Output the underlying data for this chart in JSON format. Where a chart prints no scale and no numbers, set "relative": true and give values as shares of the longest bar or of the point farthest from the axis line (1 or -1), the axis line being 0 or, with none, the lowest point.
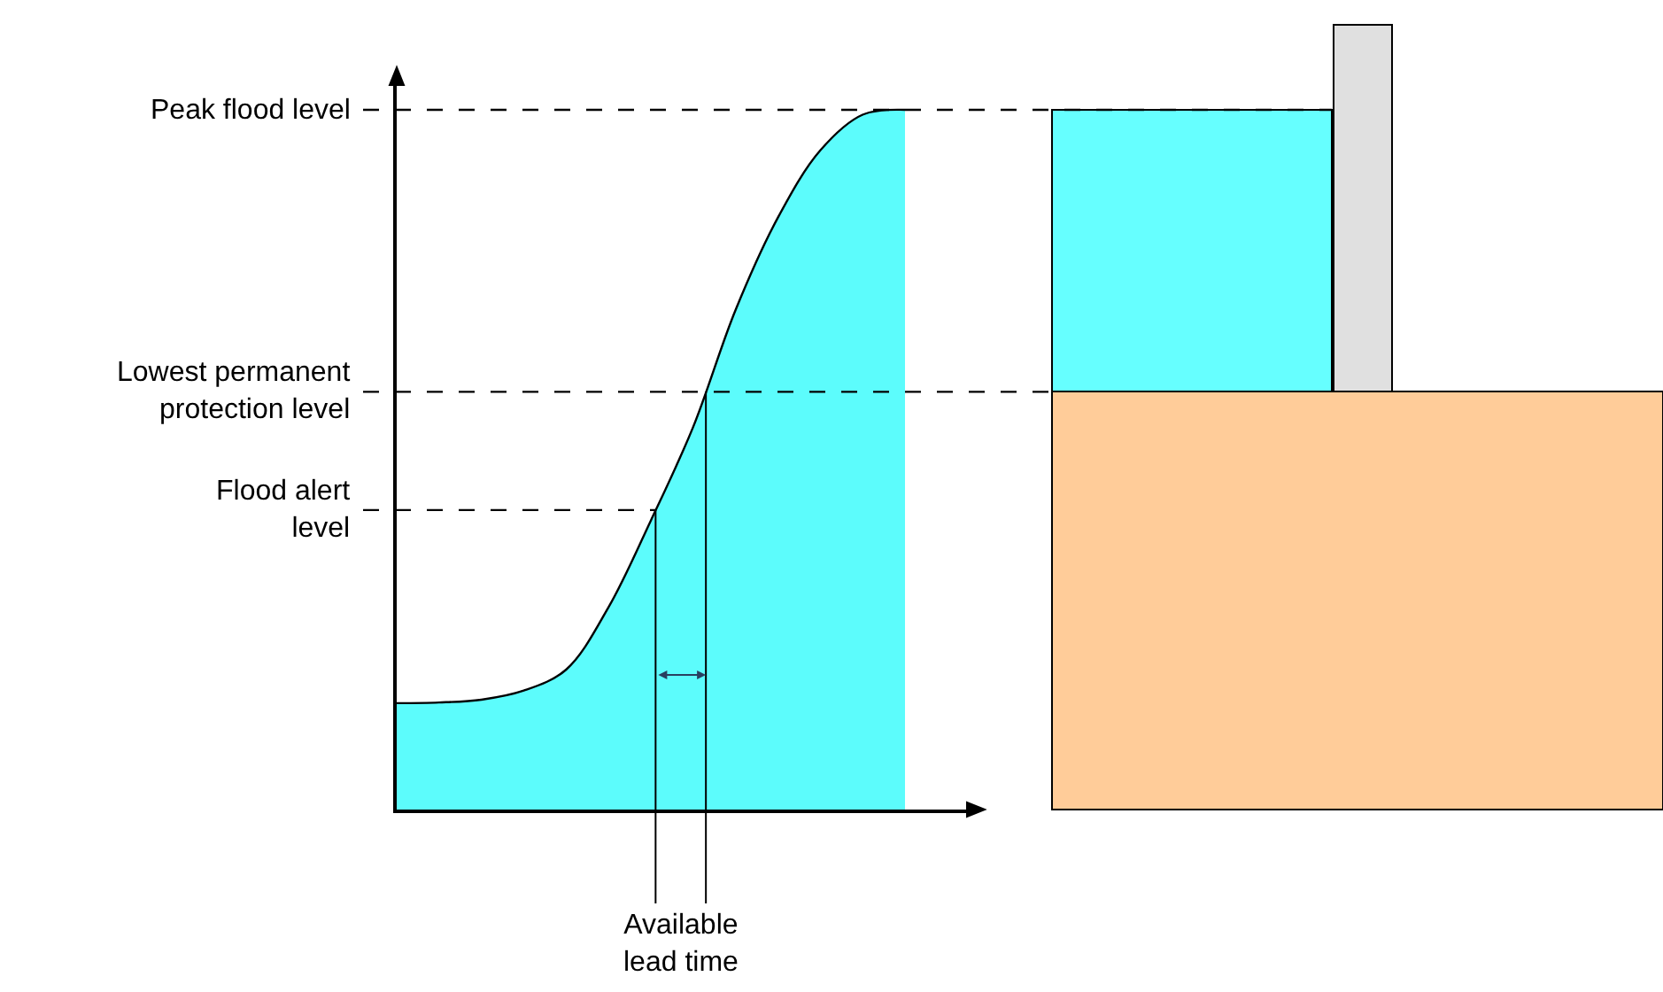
{
  "chart_data": {
    "type": "area",
    "relative": true,
    "categories": [
      null,
      null,
      null,
      null,
      null,
      null,
      null,
      null,
      null,
      null,
      null,
      null,
      null
    ],
    "series": [
      {
        "color": "#5cfcfc",
        "values": [
          0.152,
          0.153,
          0.157,
          0.17,
          0.2,
          0.289,
          0.413,
          0.547,
          0.714,
          0.846,
          0.942,
          0.993,
          1.0
        ]
      }
    ],
    "ref_lines": [
      {
        "axis": "y",
        "value": 1.0,
        "label": "Peak flood level",
        "color": "#000000",
        "line_style": "dashed"
      },
      {
        "axis": "y",
        "value": 0.597,
        "label": "Lowest permanent\nprotection level",
        "color": "#000000",
        "line_style": "dashed"
      },
      {
        "axis": "y",
        "value": 0.428,
        "label": "Flood alert\nlevel",
        "color": "#000000",
        "line_style": "dashed"
      }
    ],
    "annotations": [
      "Available\nlead time"
    ],
    "legend": false
  }
}
